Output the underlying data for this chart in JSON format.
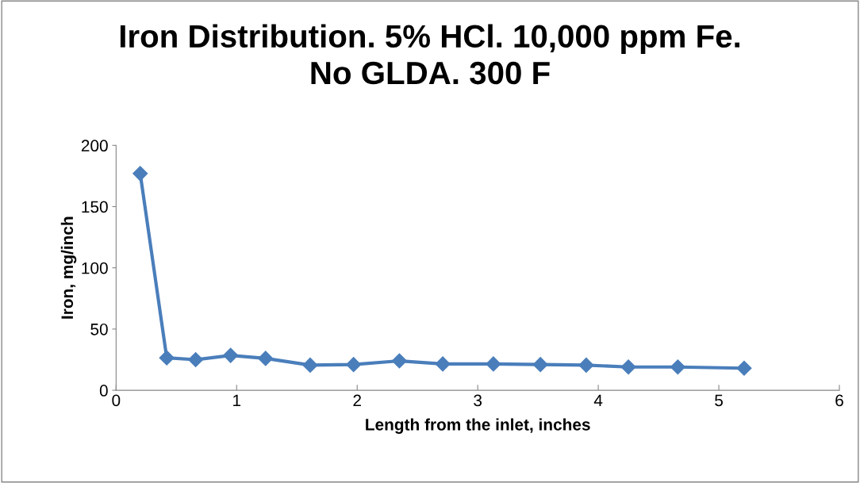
{
  "chart_data": {
    "type": "line",
    "title": "Iron Distribution. 5% HCl. 10,000 ppm Fe.\nNo GLDA. 300 F",
    "xlabel": "Length from the inlet, inches",
    "ylabel": "Iron, mg/inch",
    "x": [
      0.2,
      0.42,
      0.66,
      0.95,
      1.24,
      1.61,
      1.97,
      2.35,
      2.71,
      3.13,
      3.52,
      3.9,
      4.25,
      4.66,
      5.21
    ],
    "series": [
      {
        "color": "#4a7ebb",
        "values": [
          177,
          26.5,
          25,
          28.5,
          26,
          20.5,
          21,
          24,
          21.5,
          21.5,
          21,
          20.5,
          19,
          19,
          18
        ]
      }
    ],
    "xlim": [
      0,
      6
    ],
    "xticks": [
      0,
      1,
      2,
      3,
      4,
      5,
      6
    ],
    "ylim": [
      0,
      200
    ],
    "yticks": [
      0,
      50,
      100,
      150,
      200
    ],
    "grid": false,
    "legend": false,
    "marker": "diamond",
    "line_style": "solid"
  }
}
